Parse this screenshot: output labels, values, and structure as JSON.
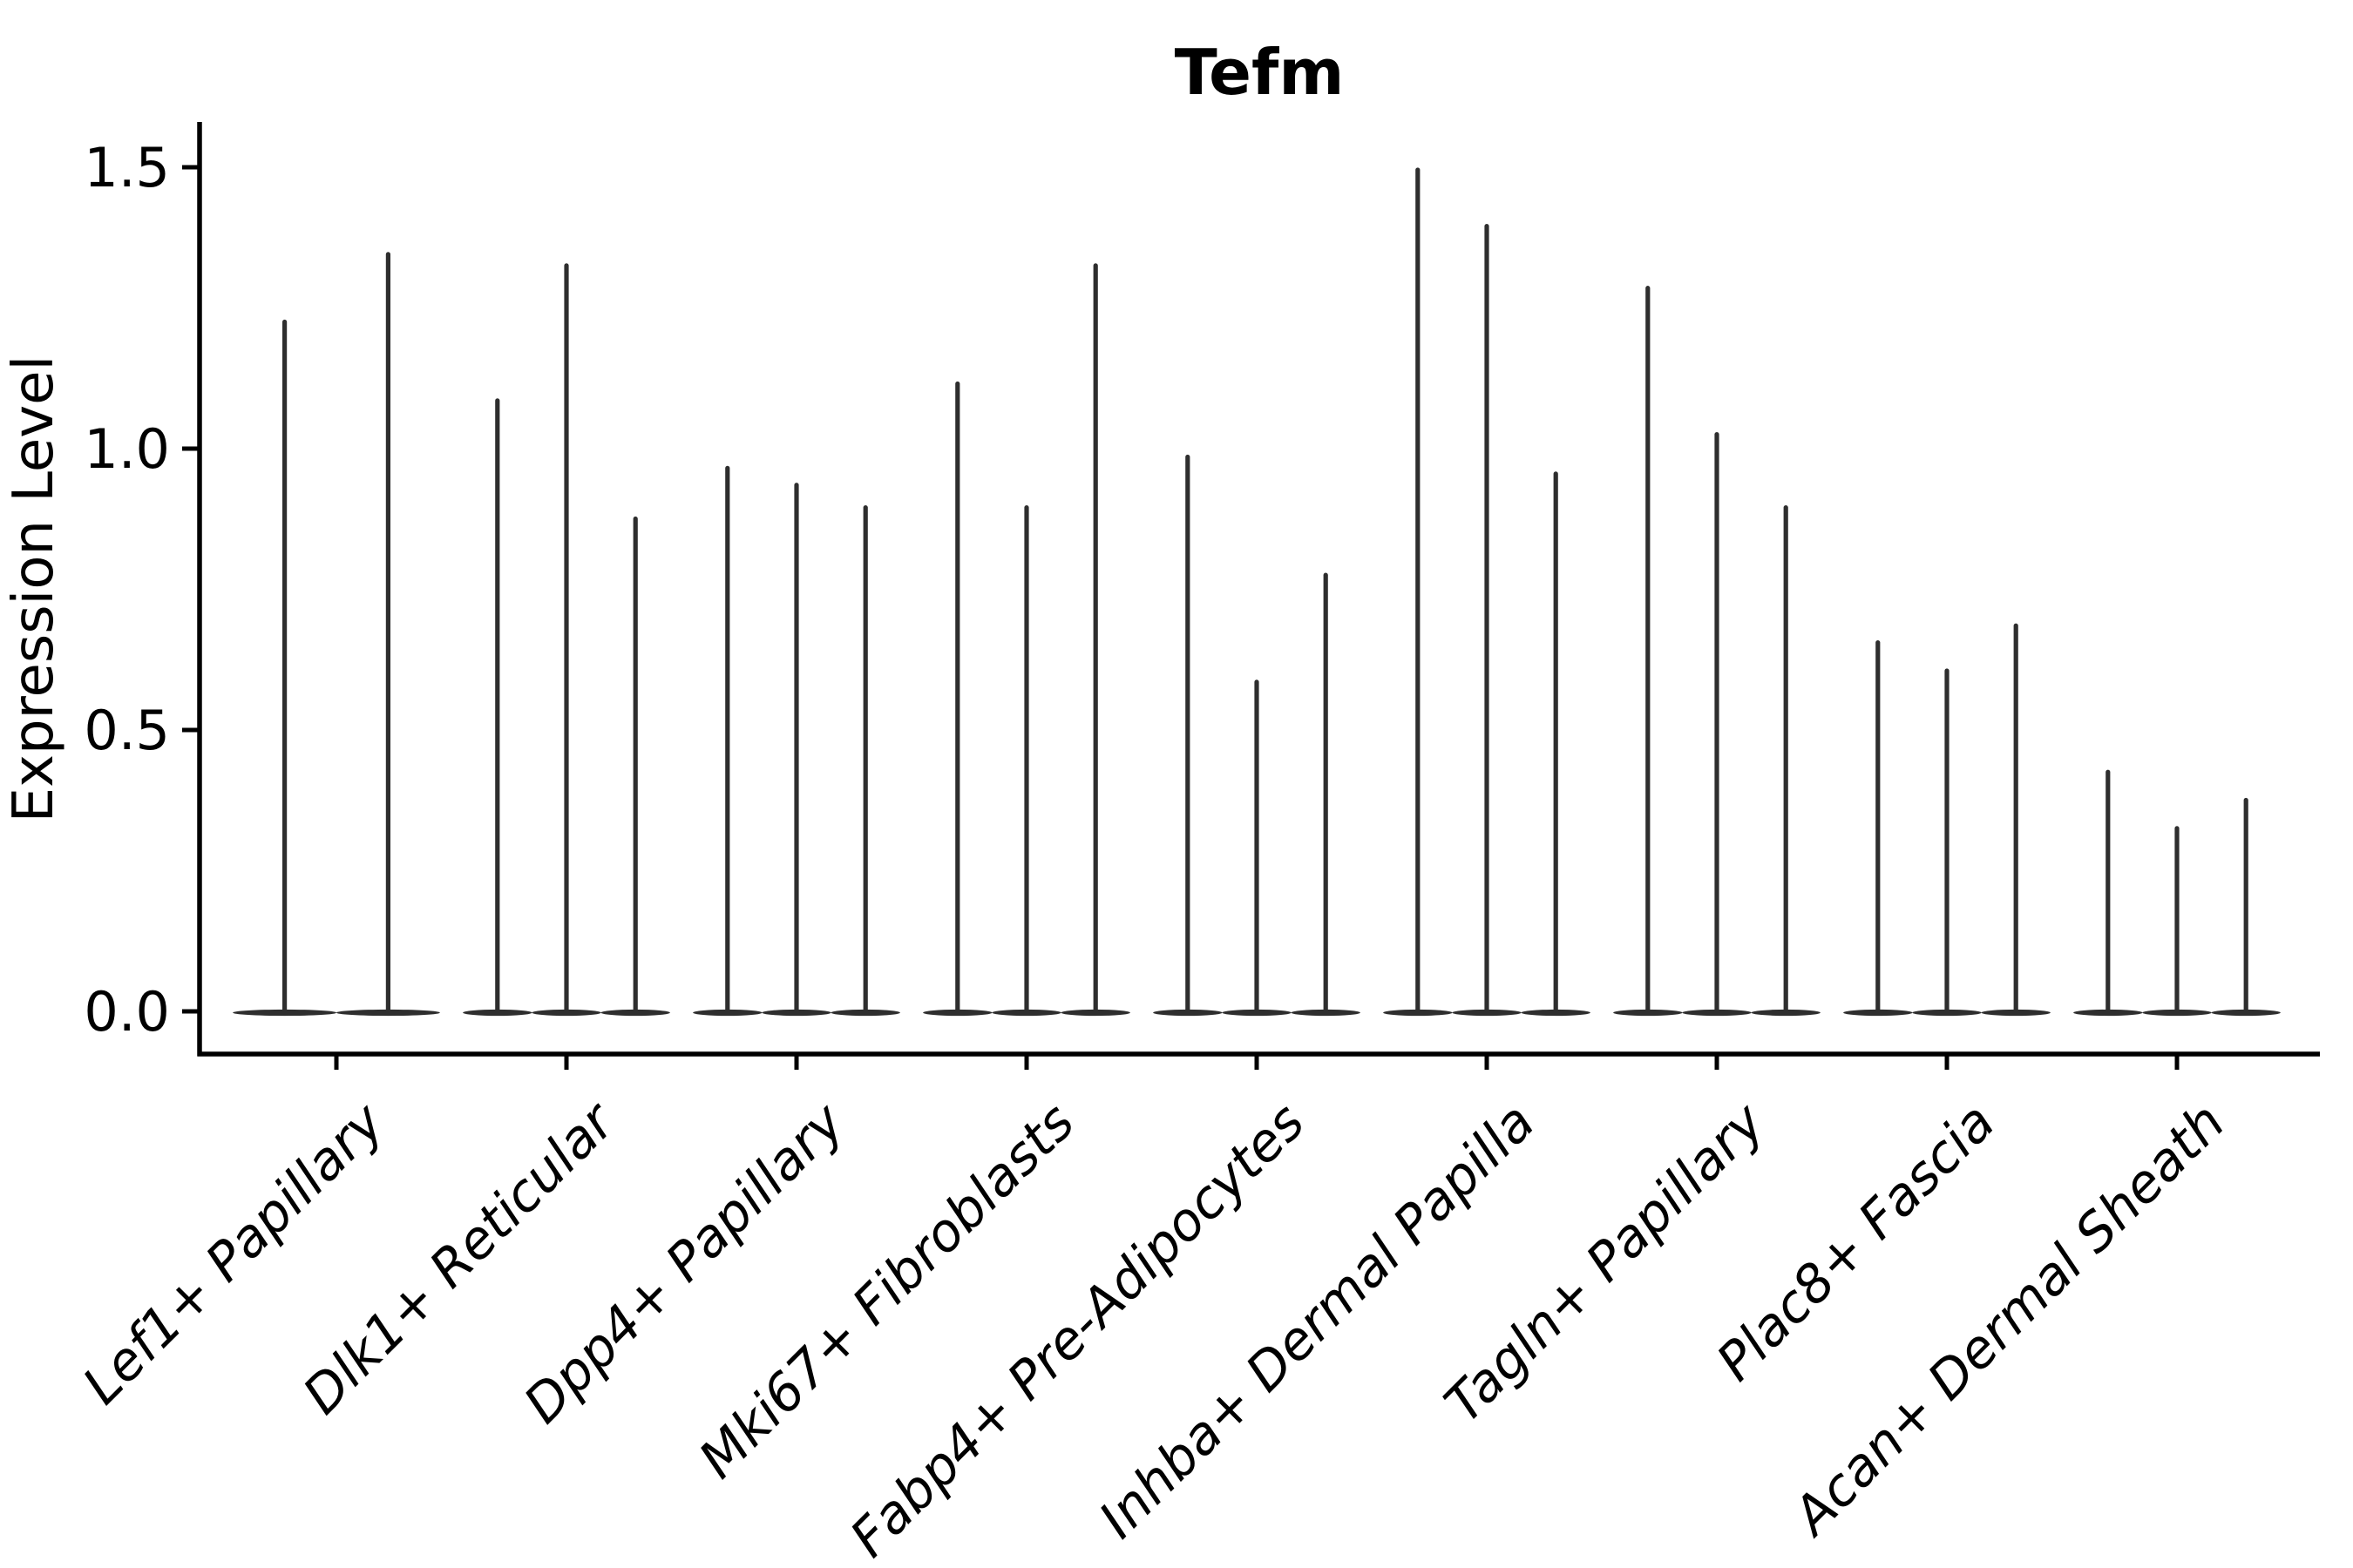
{
  "chart_data": {
    "type": "violin",
    "title": "Tefm",
    "ylabel": "Expression Level",
    "xlabel": "",
    "yticks": [
      "0.0",
      "0.5",
      "1.0",
      "1.5"
    ],
    "ylim": [
      -0.07,
      1.58
    ],
    "grid": false,
    "legend": "none",
    "description": "Single-cell expression violin plot; each category shows thin spike violins (max expression) with wide flat bases at 0.",
    "categories": [
      {
        "label": "Lef1+ Papillary",
        "violins": [
          1.23,
          1.35
        ]
      },
      {
        "label": "Dlk1+ Reticular",
        "violins": [
          1.09,
          1.33,
          0.88
        ]
      },
      {
        "label": "Dpp4+ Papillary",
        "violins": [
          0.97,
          0.94,
          0.9
        ]
      },
      {
        "label": "Mki67+ Fibroblasts",
        "violins": [
          1.12,
          0.9,
          1.33
        ]
      },
      {
        "label": "Fabp4+ Pre-Adipocytes",
        "violins": [
          0.99,
          0.59,
          0.78
        ]
      },
      {
        "label": "Inhba+ Dermal Papilla",
        "violins": [
          1.5,
          1.4,
          0.96
        ]
      },
      {
        "label": "Tagln+ Papillary",
        "violins": [
          1.29,
          1.03,
          0.9
        ]
      },
      {
        "label": "Plac8+ Fascia",
        "violins": [
          0.66,
          0.61,
          0.69
        ]
      },
      {
        "label": "Acan+ Dermal Sheath",
        "violins": [
          0.43,
          0.33,
          0.38
        ]
      }
    ],
    "colors": {
      "violin_stroke": "#2e2e2e",
      "axis": "#000000",
      "background": "#ffffff"
    }
  }
}
